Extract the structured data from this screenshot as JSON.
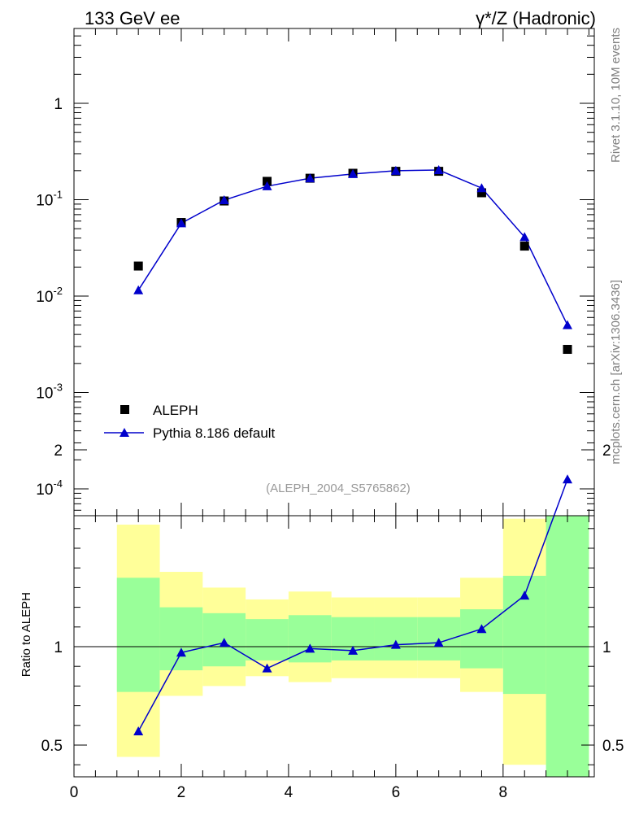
{
  "header": {
    "left_title": "133 GeV ee",
    "right_title": "γ*/Z (Hadronic)"
  },
  "side_labels": {
    "rivet": "Rivet 3.1.10,  10M events",
    "mcplots": "mcplots.cern.ch [arXiv:1306.3436]"
  },
  "analysis_id": "(ALEPH_2004_S5765862)",
  "colors": {
    "data": "#000000",
    "mc": "#0000cc",
    "band_outer": "#ffff99",
    "band_inner": "#99ff99",
    "analysis_text": "#999999",
    "side_text": "#808080"
  },
  "chart_data": [
    {
      "type": "scatter",
      "panel": "main",
      "yscale": "log",
      "xlim": [
        0,
        9.7
      ],
      "ylim": [
        5e-05,
        6
      ],
      "ytick_labels": [
        "10^-4",
        "10^-3",
        "10^-2",
        "10^-1",
        "1"
      ],
      "ytick_values": [
        0.0001,
        0.001,
        0.01,
        0.1,
        1
      ],
      "legend_position": "bottom-left",
      "series": [
        {
          "name": "ALEPH",
          "marker": "square",
          "x": [
            1.2,
            2.0,
            2.8,
            3.6,
            4.4,
            5.2,
            6.0,
            6.8,
            7.6,
            8.4,
            9.2
          ],
          "values": [
            0.0205,
            0.058,
            0.097,
            0.155,
            0.167,
            0.188,
            0.197,
            0.197,
            0.118,
            0.033,
            0.0028
          ]
        },
        {
          "name": "Pythia 8.186 default",
          "marker": "triangle",
          "x": [
            1.2,
            2.0,
            2.8,
            3.6,
            4.4,
            5.2,
            6.0,
            6.8,
            7.6,
            8.4,
            9.2
          ],
          "values": [
            0.0115,
            0.057,
            0.099,
            0.138,
            0.167,
            0.185,
            0.2,
            0.203,
            0.132,
            0.041,
            0.005
          ]
        }
      ]
    },
    {
      "type": "line",
      "panel": "ratio",
      "ylabel": "Ratio to ALEPH",
      "xlim": [
        0,
        9.7
      ],
      "ylim": [
        0.35,
        2.35
      ],
      "xticks": [
        "0",
        "2",
        "4",
        "6",
        "8"
      ],
      "xtick_values": [
        0,
        2,
        4,
        6,
        8
      ],
      "yticks": [
        "0.5",
        "1",
        "2"
      ],
      "ytick_values": [
        0.5,
        1,
        2
      ],
      "reference_line": 1,
      "bands": {
        "bins": [
          [
            0.8,
            1.6
          ],
          [
            1.6,
            2.4
          ],
          [
            2.4,
            3.2
          ],
          [
            3.2,
            4.0
          ],
          [
            4.0,
            4.8
          ],
          [
            4.8,
            5.6
          ],
          [
            5.6,
            6.4
          ],
          [
            6.4,
            7.2
          ],
          [
            7.2,
            8.0
          ],
          [
            8.0,
            8.8
          ],
          [
            8.8,
            9.6
          ]
        ],
        "outer_low": [
          0.44,
          0.75,
          0.8,
          0.85,
          0.82,
          0.84,
          0.84,
          0.84,
          0.77,
          0.4,
          0.3
        ],
        "outer_high": [
          1.62,
          1.38,
          1.3,
          1.24,
          1.28,
          1.25,
          1.25,
          1.25,
          1.35,
          1.65,
          2.4
        ],
        "inner_low": [
          0.77,
          0.88,
          0.9,
          0.93,
          0.92,
          0.93,
          0.93,
          0.93,
          0.89,
          0.76,
          0.3
        ],
        "inner_high": [
          1.35,
          1.2,
          1.17,
          1.14,
          1.16,
          1.15,
          1.15,
          1.15,
          1.19,
          1.36,
          2.0
        ]
      },
      "series": [
        {
          "name": "Pythia 8.186 default",
          "x": [
            1.2,
            2.0,
            2.8,
            3.6,
            4.4,
            5.2,
            6.0,
            6.8,
            7.6,
            8.4,
            9.2
          ],
          "values": [
            0.57,
            0.97,
            1.02,
            0.89,
            0.99,
            0.98,
            1.01,
            1.02,
            1.09,
            1.26,
            1.85
          ]
        }
      ]
    }
  ]
}
